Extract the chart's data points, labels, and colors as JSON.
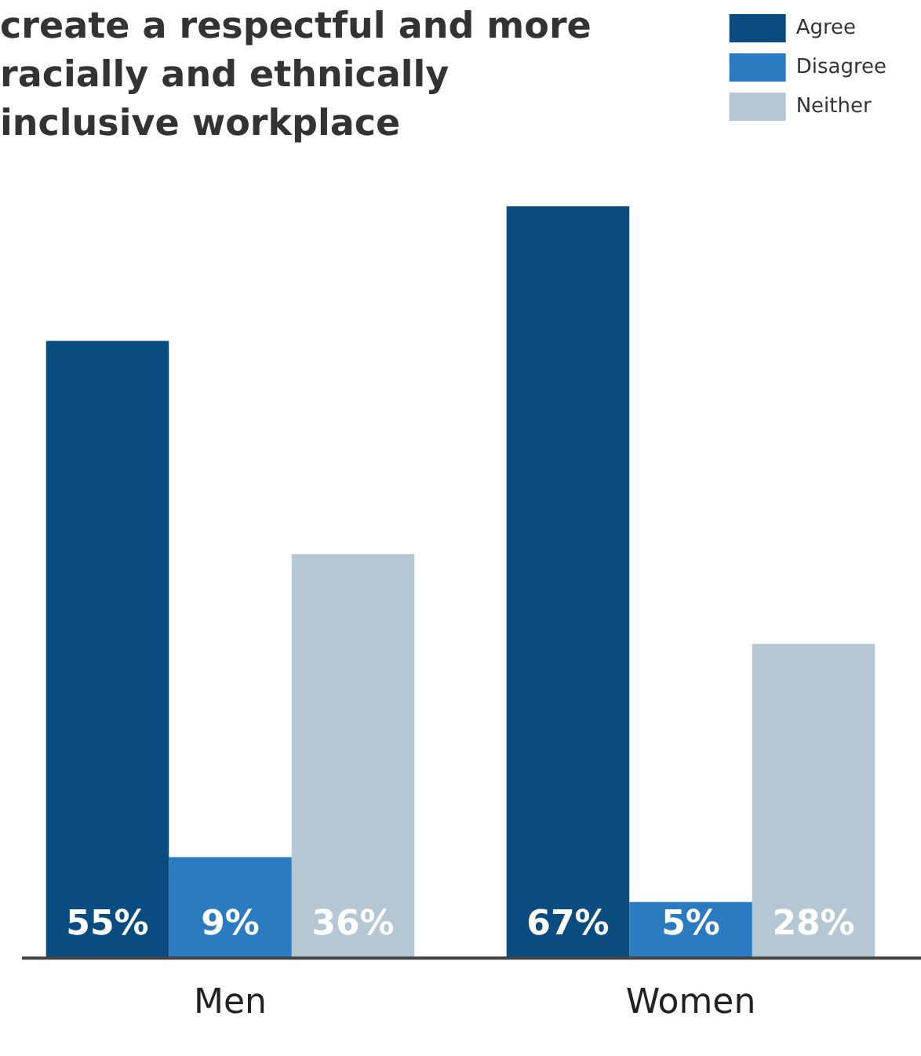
{
  "chart_data": {
    "type": "bar",
    "title": "create a respectful and more racially and ethnically inclusive workplace",
    "categories": [
      "Men",
      "Women"
    ],
    "series": [
      {
        "name": "Agree",
        "color": "#0a4b80",
        "values": [
          55,
          67
        ],
        "value_labels": [
          "55%",
          "67%"
        ]
      },
      {
        "name": "Disagree",
        "color": "#2a7bc0",
        "values": [
          9,
          5
        ],
        "value_labels": [
          "9%",
          "5%"
        ]
      },
      {
        "name": "Neither",
        "color": "#b5c7d3",
        "values": [
          36,
          28
        ],
        "value_labels": [
          "36%",
          "28%"
        ]
      }
    ],
    "tick_labels": "x",
    "legend": "top right"
  }
}
